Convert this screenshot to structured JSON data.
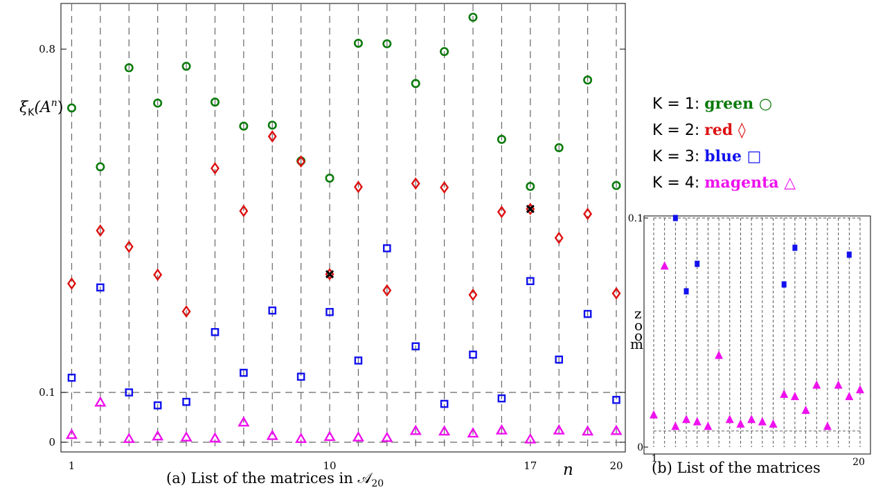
{
  "colors": {
    "green": "#0a7a0a",
    "red": "#dd1111",
    "blue": "#1111ee",
    "magenta": "#ee11ee",
    "black": "#000000"
  },
  "legend": [
    {
      "label": "K = 1: ",
      "color_word": "green",
      "marker": "○",
      "color": "#0a7a0a"
    },
    {
      "label": "K = 2: ",
      "color_word": "red",
      "marker": "◊",
      "color": "#dd1111"
    },
    {
      "label": "K = 3: ",
      "color_word": "blue",
      "marker": "□",
      "color": "#1111ee"
    },
    {
      "label": "K = 4: ",
      "color_word": "magenta",
      "marker": "△",
      "color": "#ee11ee"
    }
  ],
  "chart_data": [
    {
      "type": "scatter",
      "caption": "(a) List of the matrices in 𝒜",
      "caption_sub": "20",
      "ylabel": "ξ",
      "ylabel_sub": "K",
      "ylabel_rest": "(A",
      "ylabel_sup": "n",
      "ylabel_close": ")",
      "xlabel": "n",
      "x_ticks": [
        "1",
        "10",
        "17",
        "20"
      ],
      "y_ticks": [
        "0",
        "0.1",
        "0.8"
      ],
      "y_axis_note": "piecewise-linear axis: 0–0.1 zoomed",
      "xlim": [
        1,
        20
      ],
      "ylim": [
        0,
        0.88
      ],
      "grid": "vertical dashed at each n; horizontal dashed at 0 and 0.1",
      "x": [
        1,
        2,
        3,
        4,
        5,
        6,
        7,
        8,
        9,
        10,
        11,
        12,
        13,
        14,
        15,
        16,
        17,
        18,
        19,
        20
      ],
      "series": [
        {
          "name": "K = 1",
          "marker": "circle",
          "color": "#0a7a0a",
          "values": [
            0.68,
            0.56,
            0.762,
            0.69,
            0.765,
            0.692,
            0.643,
            0.645,
            0.572,
            0.537,
            0.812,
            0.811,
            0.73,
            0.795,
            0.865,
            0.616,
            0.52,
            0.599,
            0.737,
            0.522
          ]
        },
        {
          "name": "K = 2",
          "marker": "diamond",
          "color": "#dd1111",
          "values": [
            0.322,
            0.43,
            0.397,
            0.34,
            0.265,
            0.557,
            0.47,
            0.622,
            0.571,
            0.341,
            0.519,
            0.308,
            0.526,
            0.518,
            0.299,
            0.468,
            0.474,
            0.415,
            0.464,
            0.302
          ]
        },
        {
          "name": "K = 3",
          "marker": "square",
          "color": "#1111ee",
          "values": [
            0.13,
            0.314,
            0.1,
            0.074,
            0.081,
            0.223,
            0.14,
            0.267,
            0.132,
            0.264,
            0.165,
            0.394,
            0.194,
            0.077,
            0.177,
            0.088,
            0.327,
            0.167,
            0.26,
            0.085
          ]
        },
        {
          "name": "K = 4",
          "marker": "triangle",
          "color": "#ee11ee",
          "values": [
            0.015,
            0.08,
            0.007,
            0.012,
            0.01,
            0.008,
            0.04,
            0.013,
            0.007,
            0.011,
            0.01,
            0.009,
            0.023,
            0.022,
            0.018,
            0.024,
            0.006,
            0.024,
            0.022,
            0.023
          ]
        }
      ],
      "highlighted": [
        {
          "x": 10,
          "series": "K = 2"
        },
        {
          "x": 17,
          "series": "K = 2"
        }
      ]
    },
    {
      "type": "scatter",
      "caption": "(b) List of the matrices",
      "zoom_label": "zoom",
      "x_ticks": [
        "1",
        "20"
      ],
      "y_ticks": [
        "0",
        "0.1"
      ],
      "xlim": [
        1,
        20
      ],
      "ylim": [
        0,
        0.1
      ],
      "grid": "vertical dashed at each n; horizontal dashed at 0.1 and ~0.007",
      "x": [
        1,
        2,
        3,
        4,
        5,
        6,
        7,
        8,
        9,
        10,
        11,
        12,
        13,
        14,
        15,
        16,
        17,
        18,
        19,
        20
      ],
      "series": [
        {
          "name": "K = 3",
          "marker": "square",
          "color": "#1111ee",
          "values": [
            null,
            null,
            0.1,
            0.068,
            0.08,
            null,
            null,
            null,
            null,
            null,
            null,
            null,
            0.071,
            0.087,
            null,
            null,
            null,
            null,
            0.084,
            null
          ]
        },
        {
          "name": "K = 4",
          "marker": "triangle",
          "color": "#ee11ee",
          "values": [
            0.014,
            0.079,
            0.009,
            0.012,
            0.011,
            0.009,
            0.04,
            0.012,
            0.01,
            0.012,
            0.011,
            0.01,
            0.023,
            0.022,
            0.016,
            0.027,
            0.009,
            0.027,
            0.022,
            0.025
          ]
        }
      ]
    }
  ]
}
